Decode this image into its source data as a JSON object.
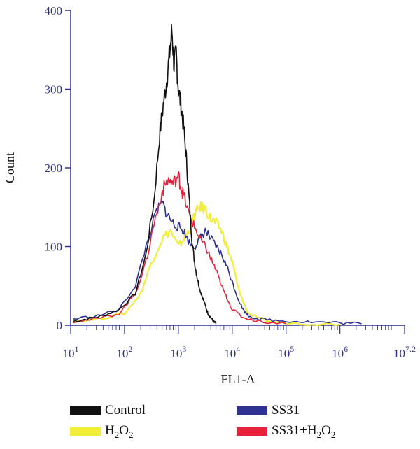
{
  "chart_data": {
    "type": "line",
    "xlabel": "FL1-A",
    "ylabel": "Count",
    "x_scale": "log10",
    "xlim": [
      1,
      7.2
    ],
    "ylim": [
      0,
      400
    ],
    "yticks": [
      0,
      100,
      200,
      300,
      400
    ],
    "xticks": [
      {
        "value": 1,
        "base": "10",
        "exp": "1"
      },
      {
        "value": 2,
        "base": "10",
        "exp": "2"
      },
      {
        "value": 3,
        "base": "10",
        "exp": "3"
      },
      {
        "value": 4,
        "base": "10",
        "exp": "4"
      },
      {
        "value": 5,
        "base": "10",
        "exp": "5"
      },
      {
        "value": 6,
        "base": "10",
        "exp": "6"
      },
      {
        "value": 7.2,
        "base": "10",
        "exp": "7.2"
      }
    ],
    "grid": false,
    "legend_position": "bottom",
    "series": [
      {
        "name": "Control",
        "color": "#111111",
        "x": [
          1.05,
          1.3,
          1.6,
          1.9,
          2.2,
          2.4,
          2.55,
          2.65,
          2.72,
          2.78,
          2.83,
          2.88,
          2.92,
          2.96,
          3.0,
          3.05,
          3.1,
          3.15,
          3.2,
          3.25,
          3.3,
          3.35,
          3.4,
          3.45,
          3.5,
          3.55,
          3.6,
          3.65,
          3.7
        ],
        "y": [
          5,
          8,
          12,
          20,
          40,
          90,
          160,
          240,
          280,
          310,
          340,
          375,
          330,
          345,
          300,
          280,
          250,
          210,
          160,
          110,
          80,
          60,
          45,
          35,
          25,
          15,
          10,
          5,
          2
        ]
      },
      {
        "name": "H2O2",
        "display_name": [
          "H",
          "2",
          "O",
          "2"
        ],
        "color": "#f2ec3a",
        "x": [
          1.05,
          1.5,
          2.0,
          2.3,
          2.5,
          2.7,
          2.85,
          3.0,
          3.1,
          3.2,
          3.3,
          3.4,
          3.5,
          3.6,
          3.7,
          3.8,
          3.9,
          4.0,
          4.1,
          4.2,
          4.3,
          4.5,
          4.7,
          5.0,
          5.5,
          6.0
        ],
        "y": [
          5,
          8,
          15,
          40,
          80,
          110,
          120,
          100,
          110,
          120,
          140,
          150,
          148,
          135,
          130,
          120,
          100,
          80,
          50,
          30,
          15,
          8,
          5,
          3,
          2,
          1
        ]
      },
      {
        "name": "SS31",
        "color": "#2e3192",
        "x": [
          1.05,
          1.5,
          1.9,
          2.2,
          2.4,
          2.6,
          2.7,
          2.8,
          2.9,
          3.0,
          3.1,
          3.2,
          3.3,
          3.4,
          3.5,
          3.6,
          3.7,
          3.8,
          3.9,
          4.0,
          4.1,
          4.2,
          4.3,
          4.5,
          4.8,
          5.2,
          5.6,
          6.0,
          6.4
        ],
        "y": [
          8,
          12,
          20,
          50,
          100,
          145,
          155,
          140,
          130,
          125,
          120,
          105,
          100,
          110,
          120,
          110,
          100,
          90,
          75,
          55,
          35,
          20,
          12,
          8,
          6,
          5,
          4,
          3,
          2
        ]
      },
      {
        "name": "SS31+H2O2",
        "display_name": [
          "SS31+H",
          "2",
          "O",
          "2"
        ],
        "color": "#e8213a",
        "x": [
          1.05,
          1.5,
          1.9,
          2.2,
          2.4,
          2.55,
          2.7,
          2.8,
          2.9,
          3.0,
          3.05,
          3.1,
          3.2,
          3.3,
          3.4,
          3.5,
          3.6,
          3.7,
          3.8,
          3.9,
          4.0,
          4.2,
          4.5,
          5.0
        ],
        "y": [
          5,
          8,
          15,
          40,
          80,
          130,
          170,
          185,
          180,
          190,
          175,
          165,
          140,
          125,
          110,
          100,
          85,
          70,
          50,
          35,
          20,
          10,
          5,
          2
        ]
      }
    ]
  }
}
